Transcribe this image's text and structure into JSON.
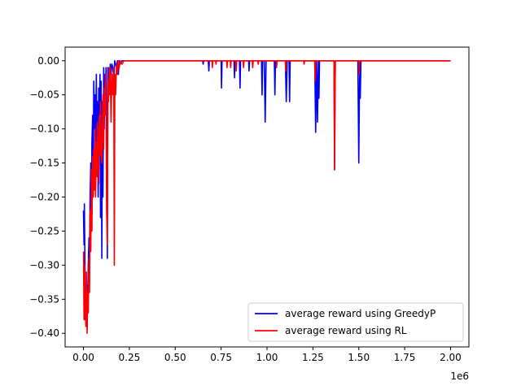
{
  "chart_data": {
    "type": "line",
    "title": "",
    "xlabel": "",
    "ylabel": "",
    "x_scale_label": "1e6",
    "xlim": [
      -0.1,
      2.1
    ],
    "ylim": [
      -0.42,
      0.02
    ],
    "x_ticks": [
      0.0,
      0.25,
      0.5,
      0.75,
      1.0,
      1.25,
      1.5,
      1.75,
      2.0
    ],
    "x_tick_labels": [
      "0.00",
      "0.25",
      "0.50",
      "0.75",
      "1.00",
      "1.25",
      "1.50",
      "1.75",
      "2.00"
    ],
    "y_ticks": [
      0.0,
      -0.05,
      -0.1,
      -0.15,
      -0.2,
      -0.25,
      -0.3,
      -0.35,
      -0.4
    ],
    "y_tick_labels": [
      "0.00",
      "−0.05",
      "−0.10",
      "−0.15",
      "−0.20",
      "−0.25",
      "−0.30",
      "−0.35",
      "−0.40"
    ],
    "grid": false,
    "legend_position": "lower-right",
    "series": [
      {
        "name": "average reward using GreedyP",
        "color": "#0000ff",
        "points": [
          [
            0.0,
            -0.22
          ],
          [
            0.003,
            -0.27
          ],
          [
            0.005,
            -0.21
          ],
          [
            0.008,
            -0.3
          ],
          [
            0.01,
            -0.38
          ],
          [
            0.013,
            -0.36
          ],
          [
            0.016,
            -0.39
          ],
          [
            0.02,
            -0.33
          ],
          [
            0.023,
            -0.37
          ],
          [
            0.026,
            -0.3
          ],
          [
            0.03,
            -0.26
          ],
          [
            0.033,
            -0.28
          ],
          [
            0.036,
            -0.2
          ],
          [
            0.04,
            -0.15
          ],
          [
            0.043,
            -0.24
          ],
          [
            0.046,
            -0.12
          ],
          [
            0.05,
            -0.08
          ],
          [
            0.053,
            -0.2
          ],
          [
            0.056,
            -0.03
          ],
          [
            0.06,
            -0.1
          ],
          [
            0.063,
            -0.05
          ],
          [
            0.066,
            -0.15
          ],
          [
            0.07,
            -0.02
          ],
          [
            0.073,
            -0.12
          ],
          [
            0.076,
            -0.06
          ],
          [
            0.08,
            -0.2
          ],
          [
            0.083,
            -0.04
          ],
          [
            0.086,
            -0.1
          ],
          [
            0.09,
            -0.02
          ],
          [
            0.093,
            -0.23
          ],
          [
            0.096,
            -0.03
          ],
          [
            0.1,
            -0.29
          ],
          [
            0.103,
            -0.06
          ],
          [
            0.106,
            -0.2
          ],
          [
            0.11,
            -0.01
          ],
          [
            0.113,
            -0.1
          ],
          [
            0.116,
            -0.02
          ],
          [
            0.12,
            -0.05
          ],
          [
            0.123,
            -0.01
          ],
          [
            0.126,
            -0.09
          ],
          [
            0.13,
            -0.29
          ],
          [
            0.133,
            -0.01
          ],
          [
            0.136,
            -0.03
          ],
          [
            0.14,
            -0.01
          ],
          [
            0.143,
            -0.05
          ],
          [
            0.146,
            -0.005
          ],
          [
            0.15,
            -0.02
          ],
          [
            0.155,
            -0.005
          ],
          [
            0.16,
            -0.01
          ],
          [
            0.165,
            -0.03
          ],
          [
            0.17,
            0.0
          ],
          [
            0.18,
            -0.01
          ],
          [
            0.185,
            0.0
          ],
          [
            0.19,
            -0.02
          ],
          [
            0.195,
            0.0
          ],
          [
            0.2,
            -0.005
          ],
          [
            0.21,
            0.0
          ],
          [
            0.65,
            0.0
          ],
          [
            0.652,
            -0.005
          ],
          [
            0.655,
            0.0
          ],
          [
            0.68,
            0.0
          ],
          [
            0.683,
            -0.015
          ],
          [
            0.686,
            0.0
          ],
          [
            0.75,
            0.0
          ],
          [
            0.752,
            -0.04
          ],
          [
            0.755,
            0.0
          ],
          [
            0.82,
            0.0
          ],
          [
            0.823,
            -0.025
          ],
          [
            0.826,
            0.0
          ],
          [
            0.85,
            0.0
          ],
          [
            0.853,
            -0.04
          ],
          [
            0.856,
            0.0
          ],
          [
            0.9,
            0.0
          ],
          [
            0.902,
            -0.015
          ],
          [
            0.905,
            0.0
          ],
          [
            0.97,
            0.0
          ],
          [
            0.973,
            -0.05
          ],
          [
            0.976,
            0.0
          ],
          [
            0.985,
            0.0
          ],
          [
            0.99,
            -0.09
          ],
          [
            0.995,
            0.0
          ],
          [
            1.04,
            0.0
          ],
          [
            1.043,
            -0.05
          ],
          [
            1.046,
            0.0
          ],
          [
            1.1,
            0.0
          ],
          [
            1.105,
            -0.06
          ],
          [
            1.11,
            0.0
          ],
          [
            1.12,
            0.0
          ],
          [
            1.123,
            -0.06
          ],
          [
            1.126,
            0.0
          ],
          [
            1.26,
            0.0
          ],
          [
            1.265,
            -0.105
          ],
          [
            1.27,
            0.0
          ],
          [
            1.275,
            -0.09
          ],
          [
            1.28,
            0.0
          ],
          [
            1.283,
            -0.055
          ],
          [
            1.286,
            0.0
          ],
          [
            1.365,
            0.0
          ],
          [
            1.368,
            -0.16
          ],
          [
            1.372,
            0.0
          ],
          [
            1.495,
            0.0
          ],
          [
            1.5,
            -0.15
          ],
          [
            1.505,
            0.0
          ],
          [
            1.508,
            -0.055
          ],
          [
            1.512,
            0.0
          ],
          [
            2.0,
            0.0
          ]
        ]
      },
      {
        "name": "average reward using RL",
        "color": "#ff0000",
        "points": [
          [
            0.0,
            -0.28
          ],
          [
            0.003,
            -0.38
          ],
          [
            0.006,
            -0.3
          ],
          [
            0.01,
            -0.36
          ],
          [
            0.013,
            -0.39
          ],
          [
            0.016,
            -0.31
          ],
          [
            0.02,
            -0.4
          ],
          [
            0.023,
            -0.34
          ],
          [
            0.026,
            -0.37
          ],
          [
            0.03,
            -0.29
          ],
          [
            0.033,
            -0.34
          ],
          [
            0.036,
            -0.22
          ],
          [
            0.04,
            -0.28
          ],
          [
            0.043,
            -0.16
          ],
          [
            0.046,
            -0.25
          ],
          [
            0.05,
            -0.14
          ],
          [
            0.053,
            -0.2
          ],
          [
            0.056,
            -0.13
          ],
          [
            0.06,
            -0.19
          ],
          [
            0.063,
            -0.1
          ],
          [
            0.066,
            -0.2
          ],
          [
            0.07,
            -0.12
          ],
          [
            0.073,
            -0.17
          ],
          [
            0.076,
            -0.09
          ],
          [
            0.08,
            -0.15
          ],
          [
            0.083,
            -0.18
          ],
          [
            0.086,
            -0.08
          ],
          [
            0.09,
            -0.14
          ],
          [
            0.093,
            -0.06
          ],
          [
            0.096,
            -0.12
          ],
          [
            0.1,
            -0.15
          ],
          [
            0.103,
            -0.1
          ],
          [
            0.106,
            -0.05
          ],
          [
            0.11,
            -0.13
          ],
          [
            0.113,
            -0.04
          ],
          [
            0.116,
            -0.08
          ],
          [
            0.12,
            -0.02
          ],
          [
            0.123,
            -0.07
          ],
          [
            0.126,
            -0.22
          ],
          [
            0.13,
            -0.27
          ],
          [
            0.133,
            -0.03
          ],
          [
            0.136,
            -0.06
          ],
          [
            0.14,
            -0.01
          ],
          [
            0.143,
            -0.05
          ],
          [
            0.146,
            -0.01
          ],
          [
            0.15,
            -0.09
          ],
          [
            0.155,
            -0.02
          ],
          [
            0.16,
            -0.05
          ],
          [
            0.165,
            -0.01
          ],
          [
            0.168,
            -0.3
          ],
          [
            0.171,
            -0.02
          ],
          [
            0.175,
            -0.05
          ],
          [
            0.18,
            -0.005
          ],
          [
            0.185,
            -0.02
          ],
          [
            0.19,
            0.0
          ],
          [
            0.195,
            -0.01
          ],
          [
            0.2,
            0.0
          ],
          [
            0.21,
            -0.005
          ],
          [
            0.22,
            0.0
          ],
          [
            0.7,
            0.0
          ],
          [
            0.702,
            -0.01
          ],
          [
            0.705,
            0.0
          ],
          [
            0.72,
            0.0
          ],
          [
            0.722,
            -0.005
          ],
          [
            0.725,
            0.0
          ],
          [
            0.78,
            0.0
          ],
          [
            0.782,
            -0.01
          ],
          [
            0.785,
            0.0
          ],
          [
            0.8,
            0.0
          ],
          [
            0.802,
            -0.01
          ],
          [
            0.805,
            0.0
          ],
          [
            0.83,
            0.0
          ],
          [
            0.832,
            -0.015
          ],
          [
            0.835,
            0.0
          ],
          [
            0.87,
            0.0
          ],
          [
            0.872,
            -0.01
          ],
          [
            0.875,
            0.0
          ],
          [
            0.92,
            0.0
          ],
          [
            0.922,
            -0.01
          ],
          [
            0.925,
            0.0
          ],
          [
            0.95,
            0.0
          ],
          [
            0.952,
            -0.005
          ],
          [
            0.955,
            0.0
          ],
          [
            1.05,
            0.0
          ],
          [
            1.052,
            -0.01
          ],
          [
            1.055,
            0.0
          ],
          [
            1.1,
            0.0
          ],
          [
            1.102,
            -0.015
          ],
          [
            1.105,
            0.0
          ],
          [
            1.2,
            0.0
          ],
          [
            1.202,
            -0.005
          ],
          [
            1.205,
            0.0
          ],
          [
            1.26,
            0.0
          ],
          [
            1.262,
            -0.03
          ],
          [
            1.265,
            0.0
          ],
          [
            1.365,
            0.0
          ],
          [
            1.368,
            -0.16
          ],
          [
            1.372,
            0.0
          ],
          [
            1.5,
            0.0
          ],
          [
            1.502,
            -0.02
          ],
          [
            1.505,
            0.0
          ],
          [
            2.0,
            0.0
          ]
        ]
      }
    ]
  }
}
